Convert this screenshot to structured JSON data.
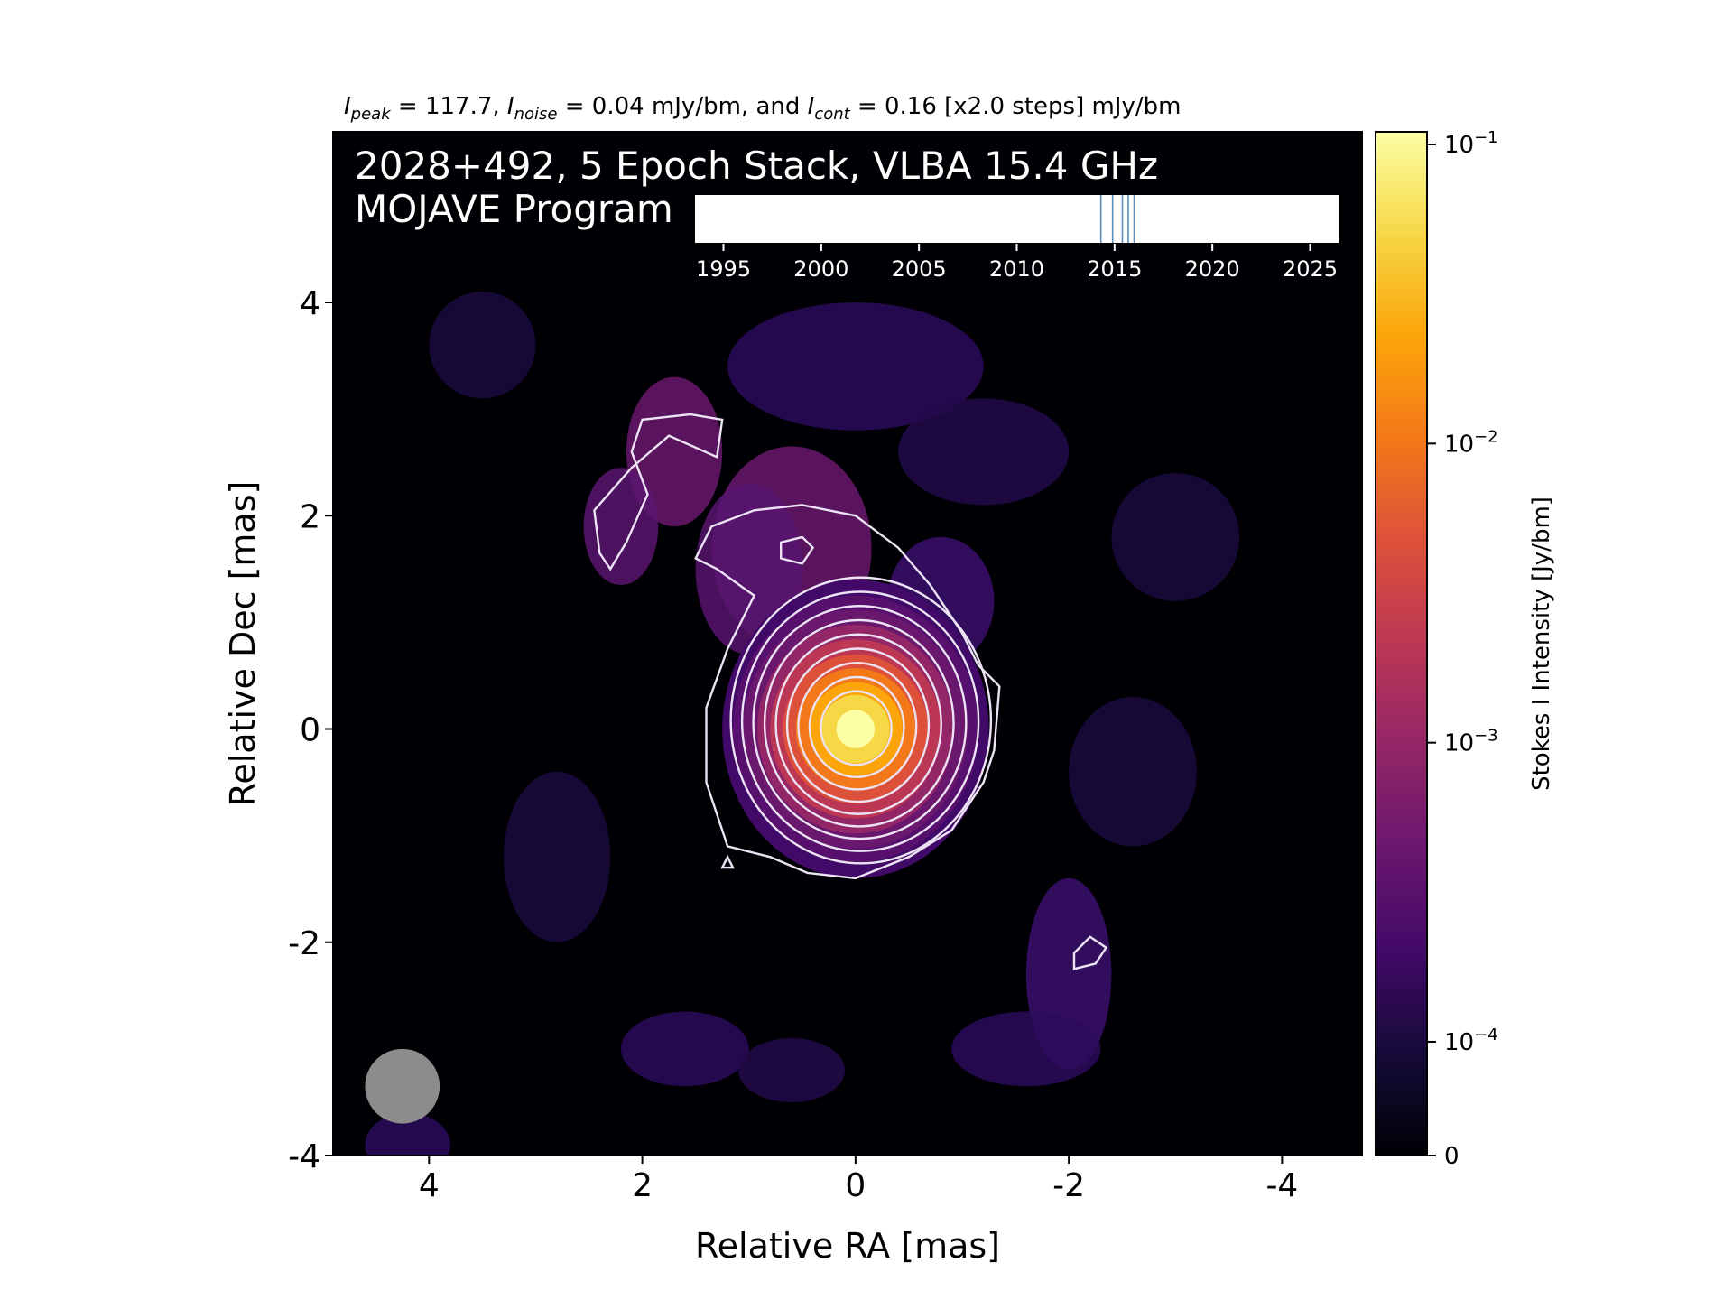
{
  "chart_data": {
    "type": "heatmap",
    "title": "I_peak = 117.7, I_noise = 0.04 mJy/bm, and I_cont = 0.16 [x2.0 steps] mJy/bm",
    "title_parts": {
      "peak_sym": "I",
      "peak_sub": "peak",
      "peak_rest": " = 117.7, ",
      "noise_sym": "I",
      "noise_sub": "noise",
      "noise_rest": " = 0.04 mJy/bm, and ",
      "cont_sym": "I",
      "cont_sub": "cont",
      "cont_rest": " = 0.16 [x2.0 steps] mJy/bm"
    },
    "annotation_line1": "2028+492, 5 Epoch Stack, VLBA 15.4 GHz",
    "annotation_line2": "MOJAVE Program",
    "xlabel": "Relative RA [mas]",
    "ylabel": "Relative Dec [mas]",
    "xlim": [
      4.9,
      -4.75
    ],
    "ylim": [
      -4.0,
      5.6
    ],
    "x_ticks": [
      4,
      2,
      0,
      -2,
      -4
    ],
    "x_tick_labels": [
      "4",
      "2",
      "0",
      "-2",
      "-4"
    ],
    "y_ticks": [
      4,
      2,
      0,
      -2,
      -4
    ],
    "y_tick_labels": [
      "4",
      "2",
      "0",
      "-2",
      "-4"
    ],
    "colormap": "inferno",
    "colorbar": {
      "label": "Stokes I Intensity [Jy/bm]",
      "scale": "log",
      "ticks": [
        {
          "value": 0.1,
          "base": "10",
          "exp": "−1"
        },
        {
          "value": 0.01,
          "base": "10",
          "exp": "−2"
        },
        {
          "value": 0.001,
          "base": "10",
          "exp": "−3"
        },
        {
          "value": 0.0001,
          "base": "10",
          "exp": "−4"
        },
        {
          "value": 0,
          "base": "0",
          "exp": ""
        }
      ]
    },
    "peak_mJy_per_beam": 117.7,
    "noise_mJy_per_beam": 0.04,
    "lowest_contour_mJy_per_beam": 0.16,
    "contour_step_factor": 2.0,
    "contour_levels_mJy_per_beam": [
      0.16,
      0.32,
      0.64,
      1.28,
      2.56,
      5.12,
      10.24,
      20.48,
      40.96,
      81.92
    ],
    "beam_fwhm_mas": 0.7,
    "epoch_timeline": {
      "xlim": [
        1993.5,
        2026.5
      ],
      "ticks": [
        1995,
        2000,
        2005,
        2010,
        2015,
        2020,
        2025
      ],
      "tick_labels": [
        "1995",
        "2000",
        "2005",
        "2010",
        "2015",
        "2020",
        "2025"
      ],
      "epochs": [
        2014.3,
        2014.9,
        2015.4,
        2015.7,
        2016.0
      ]
    }
  },
  "colors": {
    "contour": "#ece4f4",
    "beam": "#8c8c8c",
    "epoch_line": "#5b8db8",
    "annotation": "#ffffff",
    "axis": "#000000"
  }
}
